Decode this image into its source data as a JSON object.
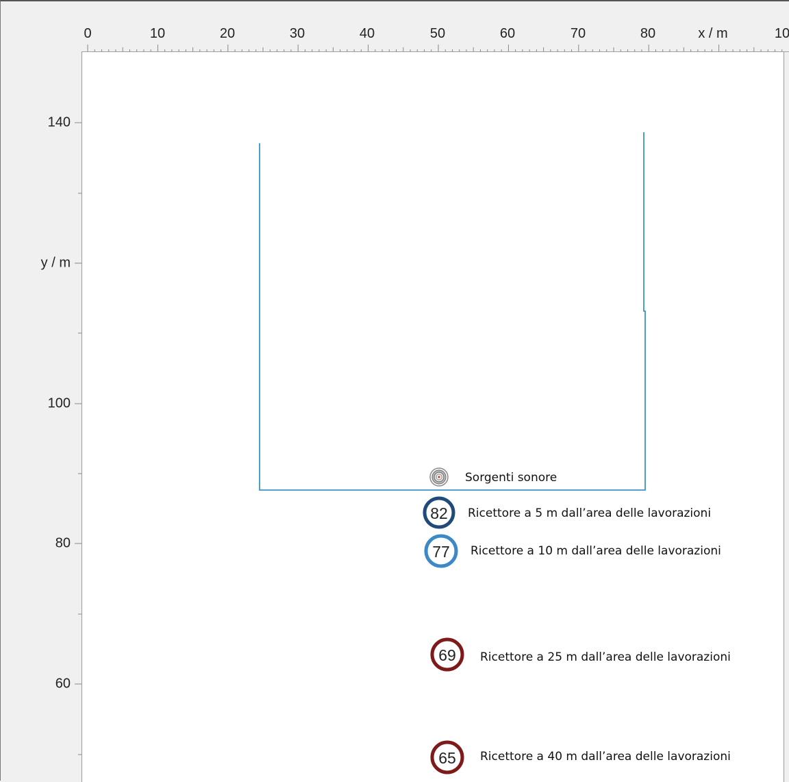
{
  "x_axis": {
    "unit_label": "x / m",
    "ticks": [
      "0",
      "10",
      "20",
      "30",
      "40",
      "50",
      "60",
      "70",
      "80",
      "10"
    ]
  },
  "y_axis": {
    "unit_label": "y / m",
    "ticks": [
      "140",
      "100",
      "80",
      "60"
    ]
  },
  "colors": {
    "outline": "#3a94c4",
    "receiver_dark_blue": "#1f4a79",
    "receiver_light_blue": "#3d88c7",
    "receiver_dark_red": "#7e1a1a",
    "source_gray": "#8a8a8a"
  },
  "source": {
    "icon": "concentric-circles-icon",
    "label": "Sorgenti sonore"
  },
  "receivers": [
    {
      "value": "82",
      "label": "Ricettore a 5 m dall’area delle lavorazioni"
    },
    {
      "value": "77",
      "label": "Ricettore a 10 m dall’area delle lavorazioni"
    },
    {
      "value": "69",
      "label": "Ricettore a 25 m dall’area delle lavorazioni"
    },
    {
      "value": "65",
      "label": "Ricettore a 40 m dall’area delle lavorazioni"
    }
  ]
}
